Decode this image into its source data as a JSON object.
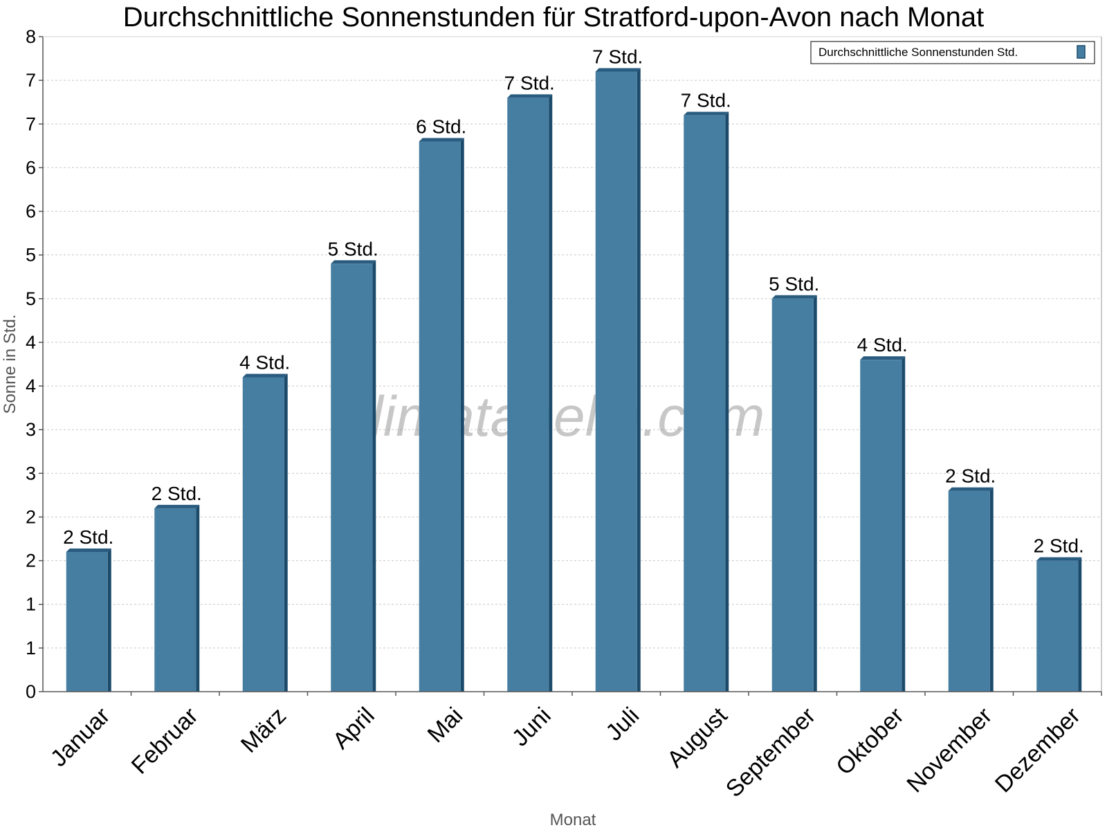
{
  "chart_data": {
    "type": "bar",
    "title": "Durchschnittliche Sonnenstunden für Stratford-upon-Avon nach Monat",
    "xlabel": "Monat",
    "ylabel": "Sonne in Std.",
    "ylim": [
      0,
      7.5
    ],
    "yticks": [
      0,
      0.5,
      1,
      1.5,
      2,
      2.5,
      3,
      3.5,
      4,
      4.5,
      5,
      5.5,
      6,
      6.5,
      7,
      7.5
    ],
    "ytick_labels": [
      "0",
      "1",
      "1",
      "2",
      "2",
      "3",
      "3",
      "4",
      "4",
      "5",
      "5",
      "6",
      "6",
      "7",
      "7",
      "8"
    ],
    "grid": true,
    "legend_position": "top-right",
    "categories": [
      "Januar",
      "Februar",
      "März",
      "April",
      "Mai",
      "Juni",
      "Juli",
      "August",
      "September",
      "Oktober",
      "November",
      "Dezember"
    ],
    "series": [
      {
        "name": "Durchschnittliche Sonnenstunden Std.",
        "color": "#467ea2",
        "values": [
          1.6,
          2.1,
          3.6,
          4.9,
          6.3,
          6.8,
          7.1,
          6.6,
          4.5,
          3.8,
          2.3,
          1.5
        ],
        "data_labels": [
          "2 Std.",
          "2 Std.",
          "4 Std.",
          "5 Std.",
          "6 Std.",
          "7 Std.",
          "7 Std.",
          "7 Std.",
          "5 Std.",
          "4 Std.",
          "2 Std.",
          "2 Std."
        ]
      }
    ]
  },
  "watermark": "klimatabelle.com",
  "colors": {
    "bar_front": "#467ea2",
    "bar_side": "#1b4a6b",
    "bar_top": "#2a5c80",
    "grid": "#c8c8c8",
    "axis": "#555555"
  }
}
